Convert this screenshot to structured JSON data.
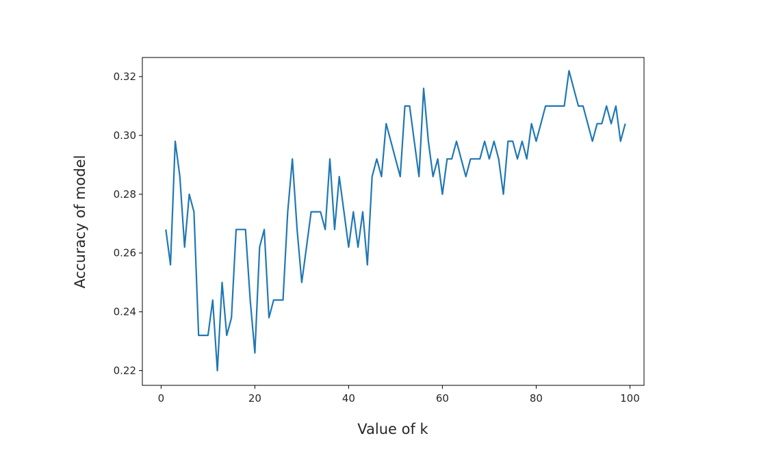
{
  "chart_data": {
    "type": "line",
    "xlabel": "Value of k",
    "ylabel": "Accuracy of model",
    "xlim": [
      -4,
      103
    ],
    "ylim": [
      0.215,
      0.3265
    ],
    "xticks": [
      0,
      20,
      40,
      60,
      80,
      100
    ],
    "yticks": [
      0.22,
      0.24,
      0.26,
      0.28,
      0.3,
      0.32
    ],
    "ytick_labels": [
      "0.22",
      "0.24",
      "0.26",
      "0.28",
      "0.30",
      "0.32"
    ],
    "grid": false,
    "line_color": "#1f77b4",
    "series": [
      {
        "x": [
          1,
          2,
          3,
          4,
          5,
          6,
          7,
          8,
          9,
          10,
          11,
          12,
          13,
          14,
          15,
          16,
          17,
          18,
          19,
          20,
          21,
          22,
          23,
          24,
          25,
          26,
          27,
          28,
          29,
          30,
          31,
          32,
          33,
          34,
          35,
          36,
          37,
          38,
          39,
          40,
          41,
          42,
          43,
          44,
          45,
          46,
          47,
          48,
          49,
          50,
          51,
          52,
          53,
          54,
          55,
          56,
          57,
          58,
          59,
          60,
          61,
          62,
          63,
          64,
          65,
          66,
          67,
          68,
          69,
          70,
          71,
          72,
          73,
          74,
          75,
          76,
          77,
          78,
          79,
          80,
          81,
          82,
          83,
          84,
          85,
          86,
          87,
          88,
          89,
          90,
          91,
          92,
          93,
          94,
          95,
          96,
          97,
          98,
          99
        ],
        "y": [
          0.268,
          0.256,
          0.298,
          0.286,
          0.262,
          0.28,
          0.274,
          0.232,
          0.232,
          0.232,
          0.244,
          0.22,
          0.25,
          0.232,
          0.238,
          0.268,
          0.268,
          0.268,
          0.244,
          0.226,
          0.262,
          0.268,
          0.238,
          0.244,
          0.244,
          0.244,
          0.274,
          0.292,
          0.268,
          0.25,
          0.262,
          0.274,
          0.274,
          0.274,
          0.268,
          0.292,
          0.268,
          0.286,
          0.274,
          0.262,
          0.274,
          0.262,
          0.274,
          0.256,
          0.286,
          0.292,
          0.286,
          0.304,
          0.298,
          0.292,
          0.286,
          0.31,
          0.31,
          0.298,
          0.286,
          0.316,
          0.298,
          0.286,
          0.292,
          0.28,
          0.292,
          0.292,
          0.298,
          0.292,
          0.286,
          0.292,
          0.292,
          0.292,
          0.298,
          0.292,
          0.298,
          0.292,
          0.28,
          0.298,
          0.298,
          0.292,
          0.298,
          0.292,
          0.304,
          0.298,
          0.304,
          0.31,
          0.31,
          0.31,
          0.31,
          0.31,
          0.322,
          0.316,
          0.31,
          0.31,
          0.304,
          0.298,
          0.304,
          0.304,
          0.31,
          0.304,
          0.31,
          0.298,
          0.304
        ]
      }
    ]
  }
}
